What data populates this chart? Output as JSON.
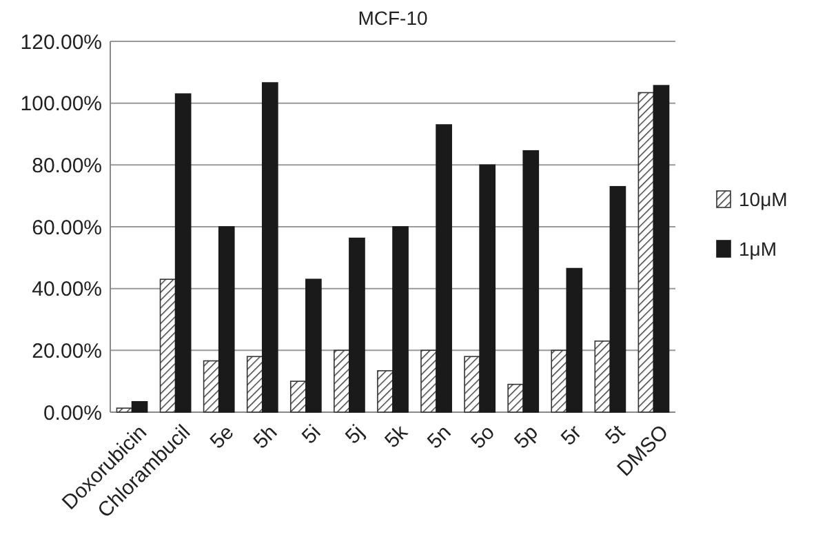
{
  "chart_data": {
    "type": "bar",
    "title": "MCF-10",
    "categories": [
      "Doxorubicin",
      "Chlorambucil",
      "5e",
      "5h",
      "5i",
      "5j",
      "5k",
      "5n",
      "5o",
      "5p",
      "5r",
      "5t",
      "DMSO"
    ],
    "series": [
      {
        "name": "10μM",
        "color": "#333333",
        "values": [
          1.3,
          43,
          16.6,
          18,
          10,
          20,
          13.4,
          20,
          18,
          9,
          20,
          23,
          103.4
        ]
      },
      {
        "name": "1μM",
        "color": "#1a1a1a",
        "values": [
          3.4,
          103,
          60,
          106.6,
          43,
          56.3,
          60,
          93,
          80,
          84.6,
          46.5,
          73,
          105.7
        ]
      }
    ],
    "ylim": [
      0,
      120
    ],
    "yticks": [
      {
        "value": 0,
        "label": "0.00%"
      },
      {
        "value": 20,
        "label": "20.00%"
      },
      {
        "value": 40,
        "label": "40.00%"
      },
      {
        "value": 60,
        "label": "60.00%"
      },
      {
        "value": 80,
        "label": "80.00%"
      },
      {
        "value": 100,
        "label": "100.00%"
      },
      {
        "value": 120,
        "label": "120.00%"
      }
    ],
    "grid": "y",
    "legend": "right"
  }
}
